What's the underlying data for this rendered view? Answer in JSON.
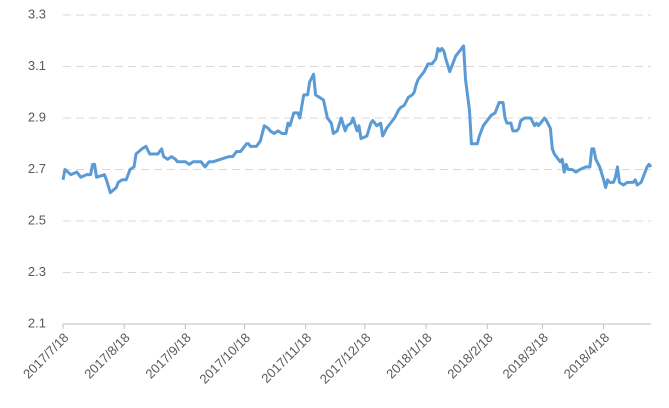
{
  "chart_data": {
    "type": "line",
    "x": [
      "2017/7/18",
      "2017/7/19",
      "2017/7/22",
      "2017/7/25",
      "2017/7/27",
      "2017/7/30",
      "2017/8/1",
      "2017/8/2",
      "2017/8/3",
      "2017/8/4",
      "2017/8/8",
      "2017/8/9",
      "2017/8/11",
      "2017/8/14",
      "2017/8/15",
      "2017/8/17",
      "2017/8/19",
      "2017/8/21",
      "2017/8/23",
      "2017/8/24",
      "2017/8/27",
      "2017/8/29",
      "2017/8/31",
      "2017/9/2",
      "2017/9/4",
      "2017/9/6",
      "2017/9/7",
      "2017/9/9",
      "2017/9/11",
      "2017/9/13",
      "2017/9/14",
      "2017/9/16",
      "2017/9/18",
      "2017/9/20",
      "2017/9/22",
      "2017/9/24",
      "2017/9/26",
      "2017/9/28",
      "2017/9/30",
      "2017/10/2",
      "2017/10/6",
      "2017/10/10",
      "2017/10/12",
      "2017/10/14",
      "2017/10/16",
      "2017/10/17",
      "2017/10/19",
      "2017/10/20",
      "2017/10/21",
      "2017/10/24",
      "2017/10/26",
      "2017/10/28",
      "2017/10/30",
      "2017/10/31",
      "2017/11/2",
      "2017/11/4",
      "2017/11/6",
      "2017/11/8",
      "2017/11/9",
      "2017/11/10",
      "2017/11/12",
      "2017/11/14",
      "2017/11/15",
      "2017/11/17",
      "2017/11/19",
      "2017/11/20",
      "2017/11/22",
      "2017/11/23",
      "2017/11/25",
      "2017/11/27",
      "2017/11/29",
      "2017/12/1",
      "2017/12/2",
      "2017/12/4",
      "2017/12/6",
      "2017/12/8",
      "2017/12/9",
      "2017/12/11",
      "2017/12/12",
      "2017/12/14",
      "2017/12/15",
      "2017/12/16",
      "2017/12/19",
      "2017/12/21",
      "2017/12/22",
      "2017/12/24",
      "2017/12/26",
      "2017/12/27",
      "2017/12/29",
      "2017/12/31",
      "2018/1/2",
      "2018/1/4",
      "2018/1/5",
      "2018/1/7",
      "2018/1/9",
      "2018/1/11",
      "2018/1/12",
      "2018/1/13",
      "2018/1/14",
      "2018/1/15",
      "2018/1/17",
      "2018/1/19",
      "2018/1/21",
      "2018/1/23",
      "2018/1/24",
      "2018/1/25",
      "2018/1/26",
      "2018/1/27",
      "2018/1/28",
      "2018/1/30",
      "2018/2/1",
      "2018/2/2",
      "2018/2/4",
      "2018/2/6",
      "2018/2/7",
      "2018/2/9",
      "2018/2/10",
      "2018/2/11",
      "2018/2/13",
      "2018/2/14",
      "2018/2/16",
      "2018/2/18",
      "2018/2/20",
      "2018/2/22",
      "2018/2/24",
      "2018/2/26",
      "2018/2/27",
      "2018/2/28",
      "2018/3/2",
      "2018/3/3",
      "2018/3/5",
      "2018/3/6",
      "2018/3/7",
      "2018/3/9",
      "2018/3/10",
      "2018/3/12",
      "2018/3/14",
      "2018/3/15",
      "2018/3/16",
      "2018/3/17",
      "2018/3/19",
      "2018/3/20",
      "2018/3/22",
      "2018/3/23",
      "2018/3/24",
      "2018/3/26",
      "2018/3/27",
      "2018/3/28",
      "2018/3/29",
      "2018/3/30",
      "2018/3/31",
      "2018/4/2",
      "2018/4/4",
      "2018/4/6",
      "2018/4/9",
      "2018/4/11",
      "2018/4/12",
      "2018/4/13",
      "2018/4/14",
      "2018/4/16",
      "2018/4/18",
      "2018/4/19",
      "2018/4/20",
      "2018/4/21",
      "2018/4/23",
      "2018/4/24",
      "2018/4/25",
      "2018/4/26",
      "2018/4/28",
      "2018/4/30",
      "2018/5/3",
      "2018/5/4",
      "2018/5/5",
      "2018/5/7",
      "2018/5/8",
      "2018/5/10",
      "2018/5/11",
      "2018/5/12"
    ],
    "series": [
      {
        "color": "#5b9bd5",
        "values": [
          2.66,
          2.7,
          2.68,
          2.69,
          2.67,
          2.68,
          2.68,
          2.72,
          2.72,
          2.67,
          2.68,
          2.66,
          2.61,
          2.63,
          2.65,
          2.66,
          2.66,
          2.7,
          2.71,
          2.76,
          2.78,
          2.79,
          2.76,
          2.76,
          2.76,
          2.78,
          2.75,
          2.74,
          2.75,
          2.74,
          2.73,
          2.73,
          2.73,
          2.72,
          2.73,
          2.73,
          2.73,
          2.71,
          2.73,
          2.73,
          2.74,
          2.75,
          2.75,
          2.77,
          2.77,
          2.78,
          2.8,
          2.8,
          2.79,
          2.79,
          2.81,
          2.87,
          2.86,
          2.85,
          2.84,
          2.85,
          2.84,
          2.84,
          2.88,
          2.87,
          2.92,
          2.92,
          2.9,
          2.99,
          2.99,
          3.04,
          3.07,
          2.99,
          2.98,
          2.97,
          2.9,
          2.88,
          2.84,
          2.85,
          2.9,
          2.85,
          2.87,
          2.88,
          2.9,
          2.85,
          2.87,
          2.82,
          2.83,
          2.88,
          2.89,
          2.87,
          2.88,
          2.83,
          2.86,
          2.88,
          2.9,
          2.93,
          2.94,
          2.95,
          2.98,
          2.99,
          3.0,
          3.03,
          3.05,
          3.06,
          3.08,
          3.11,
          3.11,
          3.13,
          3.17,
          3.16,
          3.17,
          3.16,
          3.13,
          3.08,
          3.12,
          3.14,
          3.16,
          3.18,
          3.05,
          2.93,
          2.8,
          2.8,
          2.8,
          2.83,
          2.87,
          2.89,
          2.91,
          2.92,
          2.96,
          2.96,
          2.9,
          2.88,
          2.88,
          2.85,
          2.85,
          2.86,
          2.89,
          2.9,
          2.9,
          2.9,
          2.87,
          2.88,
          2.87,
          2.88,
          2.9,
          2.89,
          2.86,
          2.78,
          2.76,
          2.74,
          2.73,
          2.74,
          2.69,
          2.72,
          2.7,
          2.7,
          2.69,
          2.7,
          2.71,
          2.71,
          2.78,
          2.78,
          2.74,
          2.71,
          2.66,
          2.63,
          2.66,
          2.65,
          2.65,
          2.67,
          2.71,
          2.65,
          2.64,
          2.65,
          2.65,
          2.66,
          2.64,
          2.65,
          2.67,
          2.71,
          2.72,
          2.71
        ]
      }
    ],
    "xlim": [
      "2017/7/18",
      "2018/5/12"
    ],
    "xticks": [
      "2017/7/18",
      "2017/8/18",
      "2017/9/18",
      "2017/10/18",
      "2017/11/18",
      "2017/12/18",
      "2018/1/18",
      "2018/2/18",
      "2018/3/18",
      "2018/4/18"
    ],
    "ylim": [
      2.1,
      3.3
    ],
    "yticks": [
      2.1,
      2.3,
      2.5,
      2.7,
      2.9,
      3.1,
      3.3
    ],
    "grid": true
  }
}
